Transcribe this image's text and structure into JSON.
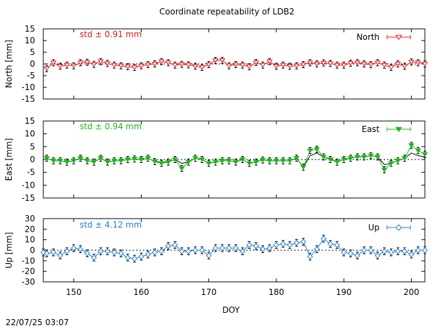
{
  "chart_data": {
    "type": "scatter",
    "title": "Coordinate repeatability of LDB2",
    "xlabel": "DOY",
    "xlim": [
      145.5,
      202
    ],
    "x_ticks": [
      "150",
      "160",
      "170",
      "180",
      "190",
      "200"
    ],
    "timestamp": "22/07/25 03:07",
    "panels": [
      {
        "name": "North",
        "ylabel": "North [mm]",
        "ylim": [
          -15,
          15
        ],
        "y_ticks": [
          "15",
          "10",
          "5",
          "0",
          "-5",
          "-10",
          "-15"
        ],
        "std_label": "std ± 0.91 mm",
        "color": "#e8161a",
        "legend": "North",
        "marker": "open-triangle-down",
        "x": [
          146,
          147,
          148,
          149,
          150,
          151,
          152,
          153,
          154,
          155,
          156,
          157,
          158,
          159,
          160,
          161,
          162,
          163,
          164,
          165,
          166,
          167,
          168,
          169,
          170,
          171,
          172,
          173,
          174,
          175,
          176,
          177,
          178,
          179,
          180,
          181,
          182,
          183,
          184,
          185,
          186,
          187,
          188,
          189,
          190,
          191,
          192,
          193,
          194,
          195,
          196,
          197,
          198,
          199,
          200,
          201,
          202
        ],
        "values": [
          -2.0,
          0.5,
          -1.0,
          -0.5,
          -0.8,
          0.5,
          0.7,
          -0.2,
          1.0,
          0.2,
          -0.5,
          -0.8,
          -1.2,
          -1.5,
          -0.8,
          -0.3,
          0.0,
          1.0,
          0.5,
          -0.5,
          -0.2,
          -0.4,
          -1.0,
          -1.5,
          -0.3,
          1.5,
          1.5,
          -0.8,
          -0.3,
          -0.5,
          -1.2,
          0.6,
          -0.5,
          1.0,
          -1.0,
          -0.5,
          -1.0,
          -0.8,
          -0.3,
          0.5,
          0.0,
          0.4,
          0.2,
          -0.5,
          -0.5,
          0.3,
          0.5,
          0.0,
          -0.3,
          0.5,
          -0.5,
          -1.5,
          0.0,
          -1.0,
          0.8,
          0.5,
          0.0
        ]
      },
      {
        "name": "East",
        "ylabel": "East [mm]",
        "ylim": [
          -15,
          15
        ],
        "y_ticks": [
          "15",
          "10",
          "5",
          "0",
          "-5",
          "-10",
          "-15"
        ],
        "std_label": "std ± 0.94 mm",
        "color": "#18b818",
        "legend": "East",
        "marker": "filled-triangle-down",
        "x": [
          146,
          147,
          148,
          149,
          150,
          151,
          152,
          153,
          154,
          155,
          156,
          157,
          158,
          159,
          160,
          161,
          162,
          163,
          164,
          165,
          166,
          167,
          168,
          169,
          170,
          171,
          172,
          173,
          174,
          175,
          176,
          177,
          178,
          179,
          180,
          181,
          182,
          183,
          184,
          185,
          186,
          187,
          188,
          189,
          190,
          191,
          192,
          193,
          194,
          195,
          196,
          197,
          198,
          199,
          200,
          201,
          202
        ],
        "values": [
          0.5,
          -0.5,
          -0.5,
          -1.0,
          -0.5,
          0.5,
          -0.5,
          -1.0,
          0.5,
          -1.0,
          -0.5,
          -0.5,
          0.0,
          0.2,
          0.0,
          0.5,
          -0.8,
          -1.5,
          -1.0,
          0.0,
          -3.5,
          -1.0,
          0.5,
          0.0,
          -1.5,
          -1.0,
          -0.5,
          -0.5,
          -1.0,
          0.0,
          -1.5,
          -1.0,
          -0.2,
          -0.5,
          -0.5,
          -0.5,
          -0.5,
          0.5,
          -3.0,
          3.5,
          4.0,
          1.0,
          0.0,
          -1.0,
          0.0,
          0.5,
          1.0,
          1.0,
          1.5,
          1.0,
          -4.0,
          -1.5,
          -0.5,
          0.5,
          5.5,
          3.5,
          2.0
        ],
        "secondary_values": [
          0.5,
          -0.5,
          -0.5,
          -1.0,
          -0.5,
          0.5,
          -0.5,
          -1.0,
          0.5,
          -1.0,
          -0.5,
          -0.5,
          0.0,
          0.2,
          0.0,
          0.5,
          -0.8,
          -1.0,
          -1.0,
          0.0,
          -1.5,
          -1.0,
          0.5,
          0.0,
          -1.5,
          -1.0,
          -0.5,
          -0.5,
          -1.0,
          0.0,
          -1.5,
          -1.0,
          -0.2,
          -0.5,
          -0.5,
          -0.5,
          -0.5,
          0.5,
          -3.0,
          1.5,
          2.5,
          1.0,
          0.0,
          -1.0,
          0.0,
          0.5,
          1.0,
          1.0,
          1.5,
          1.0,
          -2.0,
          -1.5,
          -0.5,
          0.5,
          2.5,
          1.5,
          1.0
        ]
      },
      {
        "name": "Up",
        "ylabel": "Up [mm]",
        "ylim": [
          -30,
          30
        ],
        "y_ticks": [
          "30",
          "20",
          "10",
          "0",
          "-10",
          "-20",
          "-30"
        ],
        "std_label": "std ± 4.12 mm",
        "color": "#1c7ed6",
        "legend": "Up",
        "marker": "open-diamond",
        "x": [
          145.5,
          146,
          147,
          148,
          149,
          150,
          151,
          152,
          153,
          154,
          155,
          156,
          157,
          158,
          159,
          160,
          161,
          162,
          163,
          164,
          165,
          166,
          167,
          168,
          169,
          170,
          171,
          172,
          173,
          174,
          175,
          176,
          177,
          178,
          179,
          180,
          181,
          182,
          183,
          184,
          185,
          186,
          187,
          188,
          189,
          190,
          191,
          192,
          193,
          194,
          195,
          196,
          197,
          198,
          199,
          200,
          201,
          202
        ],
        "values": [
          -2.0,
          -3.0,
          -2.0,
          -5.0,
          -1.0,
          2.0,
          1.0,
          -3.0,
          -7.0,
          -1.0,
          -1.0,
          -2.0,
          -3.0,
          -7.0,
          -8.0,
          -6.0,
          -4.0,
          -2.0,
          -1.0,
          4.0,
          5.0,
          -1.0,
          -1.0,
          0.0,
          0.0,
          -5.0,
          2.0,
          2.0,
          2.0,
          2.0,
          -1.0,
          5.0,
          4.0,
          1.0,
          2.0,
          5.0,
          6.0,
          5.0,
          7.0,
          8.0,
          -6.0,
          1.0,
          11.0,
          6.0,
          5.0,
          -2.0,
          -3.0,
          -5.0,
          0.0,
          0.0,
          -5.0,
          -1.0,
          -2.0,
          -1.0,
          -1.0,
          -4.0,
          0.0,
          0.0
        ]
      }
    ]
  }
}
